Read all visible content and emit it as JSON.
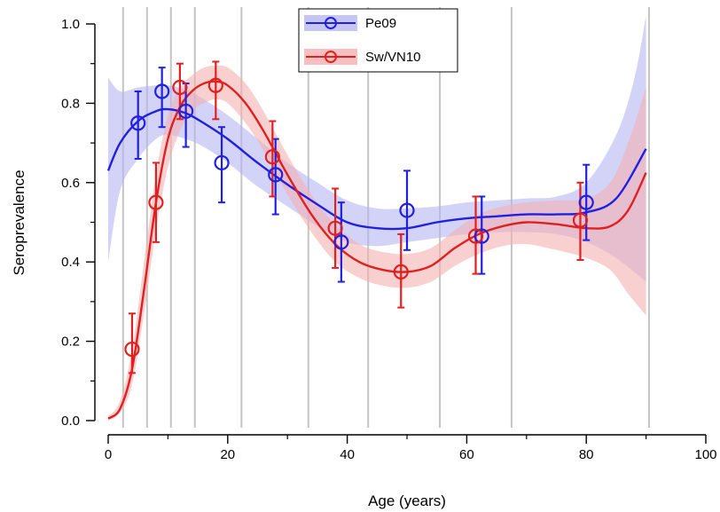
{
  "chart_data": {
    "type": "scatter",
    "xlabel": "Age (years)",
    "ylabel": "Seroprevalence",
    "xlim": [
      0,
      100
    ],
    "ylim": [
      0,
      1.0
    ],
    "x_ticks": [
      "0",
      "20",
      "40",
      "60",
      "80",
      "100"
    ],
    "y_ticks": [
      "0.0",
      "0.2",
      "0.4",
      "0.6",
      "0.8",
      "1.0"
    ],
    "vertical_lines_x": [
      2.5,
      6.5,
      10.5,
      14.5,
      22.3,
      33.5,
      43.5,
      55.5,
      67.5,
      90.5
    ],
    "legend_position": "top-center",
    "series": [
      {
        "name": "Pe09",
        "color": "#2020e0",
        "band_color": "#b6b6f4",
        "points": [
          {
            "x": 5,
            "y": 0.75,
            "lo": 0.66,
            "hi": 0.83
          },
          {
            "x": 9,
            "y": 0.83,
            "lo": 0.74,
            "hi": 0.89
          },
          {
            "x": 13,
            "y": 0.78,
            "lo": 0.69,
            "hi": 0.85
          },
          {
            "x": 19,
            "y": 0.65,
            "lo": 0.55,
            "hi": 0.74
          },
          {
            "x": 28,
            "y": 0.62,
            "lo": 0.52,
            "hi": 0.71
          },
          {
            "x": 39,
            "y": 0.45,
            "lo": 0.35,
            "hi": 0.55
          },
          {
            "x": 50,
            "y": 0.53,
            "lo": 0.43,
            "hi": 0.63
          },
          {
            "x": 62.5,
            "y": 0.465,
            "lo": 0.37,
            "hi": 0.565
          },
          {
            "x": 80,
            "y": 0.55,
            "lo": 0.455,
            "hi": 0.645
          }
        ],
        "curve": [
          [
            0,
            0.63
          ],
          [
            2,
            0.7
          ],
          [
            5,
            0.755
          ],
          [
            8,
            0.78
          ],
          [
            10,
            0.785
          ],
          [
            13,
            0.775
          ],
          [
            16,
            0.75
          ],
          [
            20,
            0.71
          ],
          [
            25,
            0.65
          ],
          [
            30,
            0.595
          ],
          [
            35,
            0.545
          ],
          [
            40,
            0.5
          ],
          [
            45,
            0.485
          ],
          [
            50,
            0.485
          ],
          [
            55,
            0.5
          ],
          [
            60,
            0.51
          ],
          [
            65,
            0.515
          ],
          [
            70,
            0.52
          ],
          [
            75,
            0.52
          ],
          [
            80,
            0.525
          ],
          [
            85,
            0.56
          ],
          [
            90,
            0.685
          ]
        ],
        "band_lo": [
          [
            0,
            0.4
          ],
          [
            2,
            0.58
          ],
          [
            5,
            0.66
          ],
          [
            8,
            0.71
          ],
          [
            10,
            0.72
          ],
          [
            13,
            0.71
          ],
          [
            16,
            0.69
          ],
          [
            20,
            0.65
          ],
          [
            25,
            0.59
          ],
          [
            30,
            0.54
          ],
          [
            35,
            0.49
          ],
          [
            40,
            0.45
          ],
          [
            45,
            0.44
          ],
          [
            50,
            0.45
          ],
          [
            55,
            0.46
          ],
          [
            60,
            0.47
          ],
          [
            65,
            0.475
          ],
          [
            70,
            0.475
          ],
          [
            75,
            0.47
          ],
          [
            80,
            0.45
          ],
          [
            85,
            0.41
          ],
          [
            90,
            0.35
          ]
        ],
        "band_hi": [
          [
            0,
            0.865
          ],
          [
            2,
            0.83
          ],
          [
            5,
            0.84
          ],
          [
            8,
            0.845
          ],
          [
            10,
            0.845
          ],
          [
            13,
            0.835
          ],
          [
            16,
            0.81
          ],
          [
            20,
            0.77
          ],
          [
            25,
            0.71
          ],
          [
            30,
            0.65
          ],
          [
            35,
            0.6
          ],
          [
            40,
            0.555
          ],
          [
            45,
            0.535
          ],
          [
            50,
            0.535
          ],
          [
            55,
            0.54
          ],
          [
            60,
            0.55
          ],
          [
            65,
            0.555
          ],
          [
            70,
            0.56
          ],
          [
            75,
            0.565
          ],
          [
            80,
            0.6
          ],
          [
            85,
            0.72
          ],
          [
            88,
            0.86
          ],
          [
            90,
            1.02
          ]
        ]
      },
      {
        "name": "Sw/VN10",
        "color": "#e02020",
        "band_color": "#f4b0b0",
        "points": [
          {
            "x": 4,
            "y": 0.18,
            "lo": 0.12,
            "hi": 0.27
          },
          {
            "x": 8,
            "y": 0.55,
            "lo": 0.45,
            "hi": 0.65
          },
          {
            "x": 12,
            "y": 0.84,
            "lo": 0.76,
            "hi": 0.9
          },
          {
            "x": 18,
            "y": 0.845,
            "lo": 0.76,
            "hi": 0.905
          },
          {
            "x": 27.5,
            "y": 0.665,
            "lo": 0.565,
            "hi": 0.755
          },
          {
            "x": 38,
            "y": 0.485,
            "lo": 0.385,
            "hi": 0.585
          },
          {
            "x": 49,
            "y": 0.375,
            "lo": 0.285,
            "hi": 0.47
          },
          {
            "x": 61.5,
            "y": 0.465,
            "lo": 0.37,
            "hi": 0.565
          },
          {
            "x": 79,
            "y": 0.505,
            "lo": 0.405,
            "hi": 0.6
          }
        ],
        "curve": [
          [
            0,
            0.005
          ],
          [
            2,
            0.03
          ],
          [
            4,
            0.13
          ],
          [
            6,
            0.33
          ],
          [
            8,
            0.55
          ],
          [
            10,
            0.71
          ],
          [
            12,
            0.79
          ],
          [
            14,
            0.83
          ],
          [
            16,
            0.85
          ],
          [
            18,
            0.855
          ],
          [
            20,
            0.845
          ],
          [
            23,
            0.8
          ],
          [
            26,
            0.73
          ],
          [
            30,
            0.62
          ],
          [
            34,
            0.52
          ],
          [
            38,
            0.445
          ],
          [
            42,
            0.4
          ],
          [
            46,
            0.38
          ],
          [
            50,
            0.375
          ],
          [
            54,
            0.39
          ],
          [
            58,
            0.435
          ],
          [
            62,
            0.47
          ],
          [
            66,
            0.49
          ],
          [
            70,
            0.5
          ],
          [
            75,
            0.495
          ],
          [
            80,
            0.485
          ],
          [
            84,
            0.49
          ],
          [
            87,
            0.53
          ],
          [
            90,
            0.625
          ]
        ],
        "band_lo": [
          [
            0,
            0.0
          ],
          [
            2,
            0.02
          ],
          [
            4,
            0.09
          ],
          [
            6,
            0.27
          ],
          [
            8,
            0.48
          ],
          [
            10,
            0.64
          ],
          [
            12,
            0.73
          ],
          [
            14,
            0.78
          ],
          [
            16,
            0.8
          ],
          [
            18,
            0.81
          ],
          [
            20,
            0.8
          ],
          [
            23,
            0.75
          ],
          [
            26,
            0.68
          ],
          [
            30,
            0.57
          ],
          [
            34,
            0.475
          ],
          [
            38,
            0.4
          ],
          [
            42,
            0.36
          ],
          [
            46,
            0.34
          ],
          [
            50,
            0.335
          ],
          [
            54,
            0.35
          ],
          [
            58,
            0.39
          ],
          [
            62,
            0.42
          ],
          [
            66,
            0.44
          ],
          [
            70,
            0.445
          ],
          [
            75,
            0.43
          ],
          [
            80,
            0.41
          ],
          [
            84,
            0.38
          ],
          [
            87,
            0.32
          ],
          [
            90,
            0.265
          ]
        ],
        "band_hi": [
          [
            0,
            0.01
          ],
          [
            2,
            0.05
          ],
          [
            4,
            0.18
          ],
          [
            6,
            0.4
          ],
          [
            8,
            0.62
          ],
          [
            10,
            0.77
          ],
          [
            12,
            0.84
          ],
          [
            14,
            0.87
          ],
          [
            16,
            0.89
          ],
          [
            18,
            0.895
          ],
          [
            20,
            0.89
          ],
          [
            23,
            0.85
          ],
          [
            26,
            0.78
          ],
          [
            30,
            0.67
          ],
          [
            34,
            0.57
          ],
          [
            38,
            0.495
          ],
          [
            42,
            0.445
          ],
          [
            46,
            0.425
          ],
          [
            50,
            0.42
          ],
          [
            54,
            0.435
          ],
          [
            58,
            0.48
          ],
          [
            62,
            0.52
          ],
          [
            66,
            0.54
          ],
          [
            70,
            0.55
          ],
          [
            75,
            0.555
          ],
          [
            80,
            0.56
          ],
          [
            84,
            0.6
          ],
          [
            87,
            0.7
          ],
          [
            90,
            0.84
          ]
        ]
      }
    ]
  }
}
